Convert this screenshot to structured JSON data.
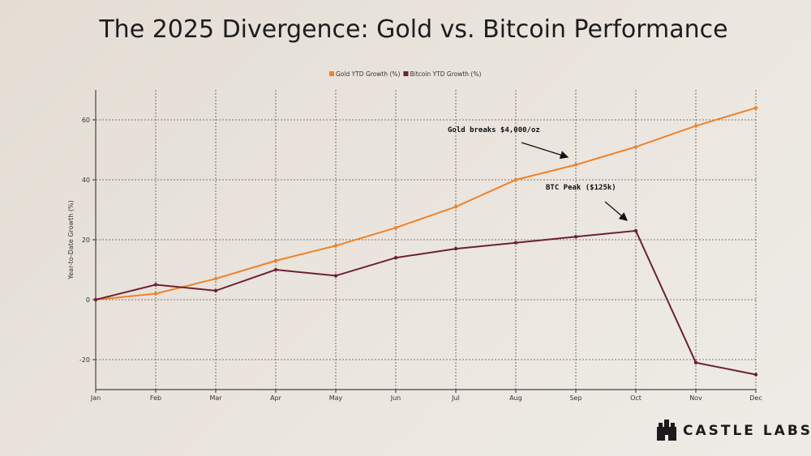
{
  "chart_data": {
    "type": "line",
    "title": "The 2025 Divergence: Gold vs. Bitcoin Performance",
    "xlabel": "",
    "ylabel": "Year-to-Date Growth (%)",
    "categories": [
      "Jan",
      "Feb",
      "Mar",
      "Apr",
      "May",
      "Jun",
      "Jul",
      "Aug",
      "Sep",
      "Oct",
      "Nov",
      "Dec"
    ],
    "ylim": [
      -30,
      70
    ],
    "yticks": [
      -20,
      0,
      20,
      40,
      60
    ],
    "grid": true,
    "legend_position": "top-center",
    "series": [
      {
        "name": "Gold YTD Growth (%)",
        "color": "#f0822a",
        "values": [
          0,
          2,
          7,
          13,
          18,
          24,
          31,
          40,
          45,
          51,
          58,
          64
        ]
      },
      {
        "name": "Bitcoin YTD Growth (%)",
        "color": "#6b2231",
        "values": [
          0,
          5,
          3,
          10,
          8,
          14,
          17,
          19,
          21,
          23,
          -21,
          -25
        ]
      }
    ],
    "annotations": [
      {
        "text": "Gold breaks $4,000/oz",
        "target_x": "Sep",
        "target_y": 45
      },
      {
        "text": "BTC Peak ($125k)",
        "target_x": "Oct",
        "target_y": 23
      }
    ]
  },
  "logo": {
    "text": "CASTLE LABS"
  }
}
